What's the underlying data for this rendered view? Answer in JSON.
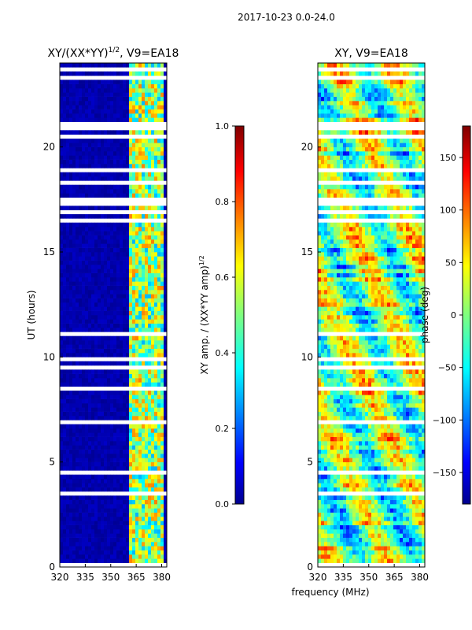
{
  "suptitle": "2017-10-23 0.0-24.0",
  "shared_xlabel": "frequency (MHz)",
  "colors": {
    "heat_low": "#00008f",
    "heat_mid": "#7fff7f",
    "heat_high": "#7f0000",
    "gap": "#ffffff"
  },
  "chart_data": [
    {
      "type": "heatmap",
      "title_text": "XY/(XX*YY)",
      "title_sup": "1/2",
      "title_suffix": ", V9=EA18",
      "xlabel": "",
      "ylabel": "UT (hours)",
      "xlim": [
        320,
        383
      ],
      "ylim": [
        0,
        24
      ],
      "xticks": [
        320,
        335,
        350,
        365,
        380
      ],
      "yticks": [
        0,
        5,
        10,
        15,
        20
      ],
      "bright_band_mhz": [
        361,
        382
      ],
      "colorbar": {
        "label_text": "XY amp. / (XX*YY amp)",
        "label_sup": "1/2",
        "range": [
          0.0,
          1.0
        ],
        "ticks": [
          "0.0",
          "0.2",
          "0.4",
          "0.6",
          "0.8",
          "1.0"
        ]
      }
    },
    {
      "type": "heatmap",
      "title_text": "XY, V9=EA18",
      "xlabel": "frequency (MHz)",
      "ylabel": "",
      "xlim": [
        320,
        383
      ],
      "ylim": [
        0,
        24
      ],
      "xticks": [
        320,
        335,
        350,
        365,
        380
      ],
      "yticks": [
        0,
        5,
        10,
        15,
        20
      ],
      "colorbar": {
        "label_text": "phase (deg)",
        "range": [
          -180,
          180
        ],
        "ticks": [
          "-150",
          "-100",
          "-50",
          "0",
          "50",
          "100",
          "150"
        ]
      }
    }
  ]
}
